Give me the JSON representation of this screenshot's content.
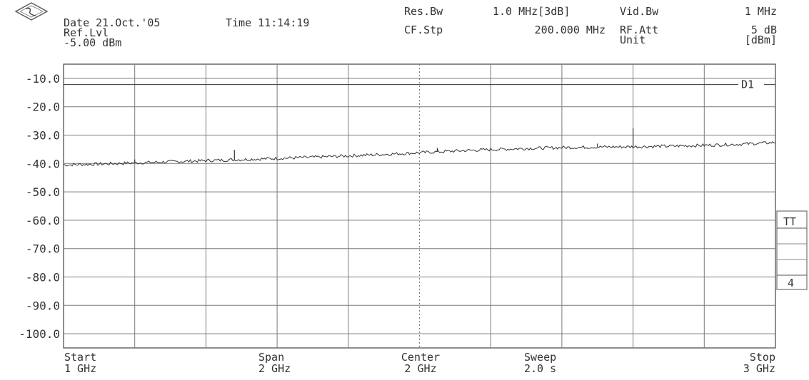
{
  "header": {
    "date_label": "Date 21.Oct.'05",
    "time_label": "Time 11:14:19",
    "ref_lvl_label": "Ref.Lvl",
    "ref_lvl_value": "-5.00 dBm",
    "res_bw_label": "Res.Bw",
    "res_bw_value": "1.0 MHz[3dB]",
    "vid_bw_label": "Vid.Bw",
    "vid_bw_value": "1 MHz",
    "cf_stp_label": "CF.Stp",
    "cf_stp_value": "200.000 MHz",
    "rf_att_label": "RF.Att",
    "rf_att_value": "5 dB",
    "unit_label": "Unit",
    "unit_value": "[dBm]"
  },
  "footer": {
    "start_label": "Start",
    "start_value": "1 GHz",
    "span_label": "Span",
    "span_value": "2 GHz",
    "center_label": "Center",
    "center_value": "2 GHz",
    "sweep_label": "Sweep",
    "sweep_value": "2.0 s",
    "stop_label": "Stop",
    "stop_value": "3 GHz"
  },
  "side_panel": {
    "tt_label": "TT",
    "trace_number": "4"
  },
  "chart_data": {
    "type": "line",
    "xlabel": "",
    "ylabel": "",
    "x_unit": "GHz",
    "y_unit": "dBm",
    "xlim": [
      1,
      3
    ],
    "ylim": [
      -105,
      -5
    ],
    "yticks": [
      -10,
      -20,
      -30,
      -40,
      -50,
      -60,
      -70,
      -80,
      -90,
      -100
    ],
    "ytick_labels": [
      "-10.0",
      "-20.0",
      "-30.0",
      "-40.0",
      "-50.0",
      "-60.0",
      "-70.0",
      "-80.0",
      "-90.0",
      "-100.0"
    ],
    "x_divisions": 10,
    "grid": true,
    "display_line": {
      "label": "D1",
      "value": -12.2
    },
    "series": [
      {
        "x": [
          1.0,
          1.1,
          1.2,
          1.3,
          1.4,
          1.5,
          1.6,
          1.7,
          1.8,
          1.9,
          2.0,
          2.1,
          2.2,
          2.3,
          2.4,
          2.5,
          2.6,
          2.7,
          2.8,
          2.9,
          3.0
        ],
        "values": [
          -40.5,
          -40.2,
          -39.8,
          -39.4,
          -39.0,
          -38.6,
          -38.2,
          -37.8,
          -37.3,
          -36.8,
          -36.2,
          -35.6,
          -35.1,
          -34.7,
          -34.4,
          -34.2,
          -34.1,
          -33.9,
          -33.6,
          -33.2,
          -32.6
        ]
      }
    ],
    "spikes": [
      {
        "x": 1.2,
        "value": -38.6
      },
      {
        "x": 1.48,
        "value": -35.2
      },
      {
        "x": 2.05,
        "value": -34.5
      },
      {
        "x": 2.5,
        "value": -33.0
      },
      {
        "x": 2.6,
        "value": -27.5
      }
    ]
  }
}
